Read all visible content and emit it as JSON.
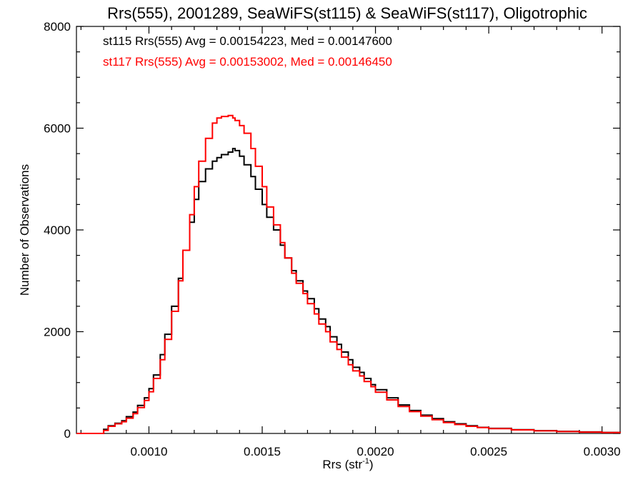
{
  "chart_data": {
    "type": "line",
    "title": "Rrs(555), 2001289, SeaWiFS(st115) & SeaWiFS(st117), Oligotrophic",
    "xlabel": "Rrs (str",
    "xlabel_sup": "-1",
    "xlabel_end": ")",
    "ylabel": "Number of Observations",
    "xlim": [
      0.00068,
      0.00308
    ],
    "ylim": [
      0,
      8000
    ],
    "xticks": [
      0.001,
      0.0015,
      0.002,
      0.0025,
      0.003
    ],
    "xtick_labels": [
      "0.0010",
      "0.0015",
      "0.0020",
      "0.0025",
      "0.0030"
    ],
    "yticks": [
      0,
      2000,
      4000,
      6000,
      8000
    ],
    "ytick_labels": [
      "0",
      "2000",
      "4000",
      "6000",
      "8000"
    ],
    "grid": false,
    "legend_position": "top-left",
    "series": [
      {
        "name": "st115",
        "annotation": "st115 Rrs(555) Avg = 0.00154223, Med = 0.00147600",
        "color": "#000000",
        "x": [
          0.00068,
          0.00078,
          0.0008,
          0.00082,
          0.00085,
          0.00088,
          0.0009,
          0.00093,
          0.00095,
          0.00098,
          0.001,
          0.00102,
          0.00105,
          0.00107,
          0.0011,
          0.00113,
          0.00115,
          0.00118,
          0.0012,
          0.00122,
          0.00125,
          0.00128,
          0.0013,
          0.00132,
          0.00135,
          0.00137,
          0.00138,
          0.0014,
          0.00142,
          0.00145,
          0.00147,
          0.0015,
          0.00152,
          0.00155,
          0.00158,
          0.0016,
          0.00163,
          0.00165,
          0.00168,
          0.0017,
          0.00173,
          0.00175,
          0.00178,
          0.0018,
          0.00183,
          0.00185,
          0.00188,
          0.0019,
          0.00193,
          0.00195,
          0.00198,
          0.002,
          0.00205,
          0.0021,
          0.00215,
          0.0022,
          0.00225,
          0.0023,
          0.00235,
          0.0024,
          0.00245,
          0.0025,
          0.0026,
          0.0027,
          0.0028,
          0.0029,
          0.003,
          0.00308
        ],
        "y": [
          0,
          0,
          80,
          150,
          200,
          250,
          330,
          420,
          550,
          700,
          880,
          1150,
          1550,
          1950,
          2500,
          3050,
          3600,
          4150,
          4600,
          4950,
          5200,
          5350,
          5420,
          5480,
          5530,
          5600,
          5560,
          5450,
          5280,
          5050,
          4800,
          4500,
          4250,
          4000,
          3700,
          3450,
          3200,
          3000,
          2800,
          2650,
          2450,
          2250,
          2100,
          1900,
          1750,
          1600,
          1450,
          1300,
          1200,
          1080,
          960,
          860,
          700,
          560,
          450,
          360,
          290,
          230,
          190,
          150,
          120,
          100,
          75,
          55,
          40,
          30,
          20,
          15
        ]
      },
      {
        "name": "st117",
        "annotation": "st117 Rrs(555) Avg = 0.00153002, Med = 0.00146450",
        "color": "#ff0000",
        "x": [
          0.00068,
          0.00078,
          0.0008,
          0.00082,
          0.00085,
          0.00088,
          0.0009,
          0.00093,
          0.00095,
          0.00098,
          0.001,
          0.00102,
          0.00105,
          0.00107,
          0.0011,
          0.00113,
          0.00115,
          0.00118,
          0.0012,
          0.00122,
          0.00125,
          0.00128,
          0.0013,
          0.00132,
          0.00135,
          0.00137,
          0.00138,
          0.0014,
          0.00142,
          0.00145,
          0.00147,
          0.0015,
          0.00152,
          0.00155,
          0.00158,
          0.0016,
          0.00163,
          0.00165,
          0.00168,
          0.0017,
          0.00173,
          0.00175,
          0.00178,
          0.0018,
          0.00183,
          0.00185,
          0.00188,
          0.0019,
          0.00193,
          0.00195,
          0.00198,
          0.002,
          0.00205,
          0.0021,
          0.00215,
          0.0022,
          0.00225,
          0.0023,
          0.00235,
          0.0024,
          0.00245,
          0.0025,
          0.0026,
          0.0027,
          0.0028,
          0.0029,
          0.003,
          0.00308
        ],
        "y": [
          0,
          0,
          60,
          140,
          190,
          230,
          300,
          390,
          510,
          650,
          820,
          1080,
          1450,
          1850,
          2400,
          3000,
          3600,
          4300,
          4850,
          5350,
          5800,
          6100,
          6200,
          6230,
          6250,
          6200,
          6150,
          6050,
          5900,
          5600,
          5250,
          4850,
          4450,
          4100,
          3750,
          3450,
          3150,
          2950,
          2750,
          2550,
          2350,
          2150,
          2000,
          1800,
          1650,
          1500,
          1350,
          1230,
          1130,
          1020,
          920,
          810,
          660,
          530,
          430,
          340,
          270,
          215,
          175,
          140,
          115,
          95,
          70,
          50,
          37,
          27,
          18,
          12
        ]
      }
    ]
  }
}
